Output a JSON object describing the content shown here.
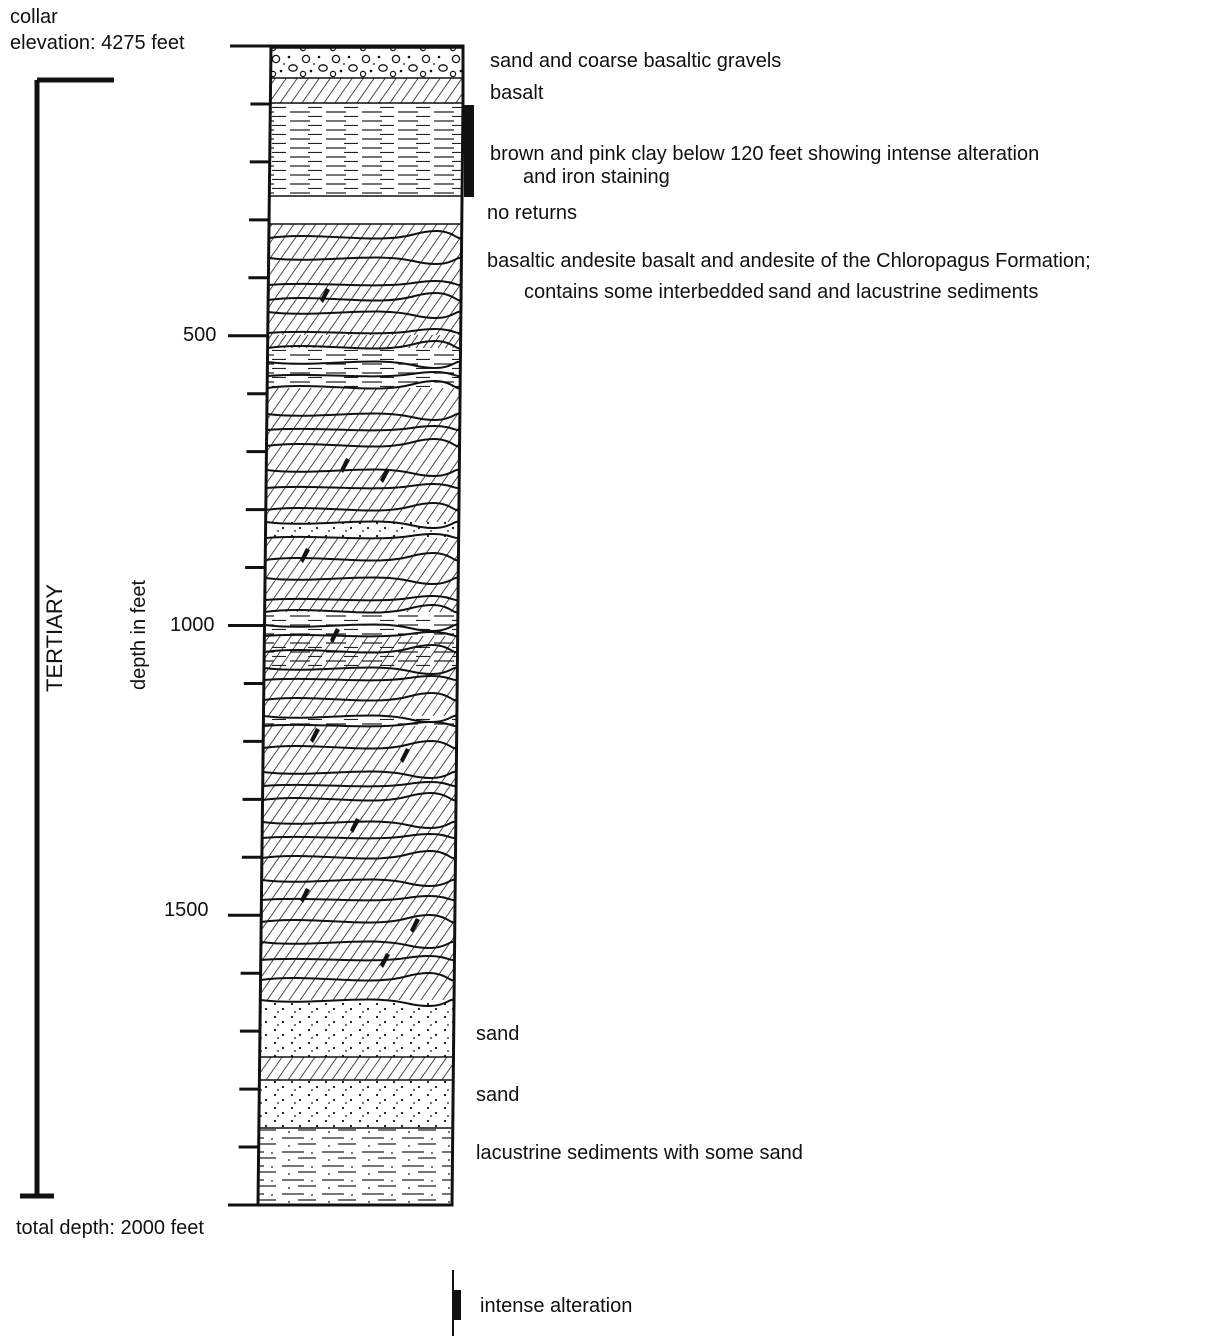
{
  "header": {
    "collar_line1": "collar",
    "collar_line2": "elevation: 4275 feet"
  },
  "axis": {
    "label": "depth in feet",
    "ticks": [
      "500",
      "1000",
      "1500"
    ],
    "total_depth": "total depth: 2000 feet"
  },
  "age": {
    "label": "TERTIARY"
  },
  "units": [
    {
      "text": "sand and coarse basaltic gravels"
    },
    {
      "text": "basalt"
    },
    {
      "line1": "brown and pink clay below 120 feet showing intense alteration",
      "line2": "and iron staining"
    },
    {
      "text": "no returns"
    },
    {
      "line1": "basaltic andesite basalt and andesite of the Chloropagus Formation;",
      "line2": "contains some interbedded sand and lacustrine sediments"
    },
    {
      "text": "sand"
    },
    {
      "text": "sand"
    },
    {
      "text": "lacustrine sediments with some sand"
    }
  ],
  "legend": {
    "label": "intense alteration"
  }
}
